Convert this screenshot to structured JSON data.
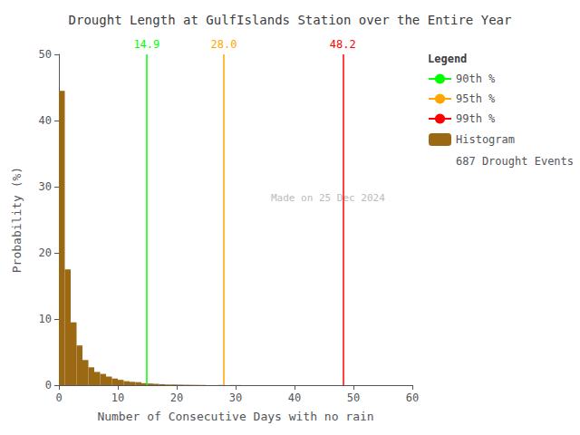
{
  "chart_data": {
    "type": "histogram",
    "title": "Drought Length at GulfIslands Station over the Entire Year",
    "x_label": "Number of Consecutive Days with no rain",
    "y_label": "Probability (%)",
    "xlim": [
      0,
      60
    ],
    "ylim": [
      0,
      50
    ],
    "xticks": [
      0,
      10,
      20,
      30,
      40,
      50,
      60
    ],
    "yticks": [
      0,
      10,
      20,
      30,
      40,
      50
    ],
    "grid": false,
    "legend": "upper right",
    "legend_title": "Legend",
    "legend_note": "687 Drought Events",
    "watermark": "Made on 25 Dec 2024",
    "bins": [
      0,
      1,
      2,
      3,
      4,
      5,
      6,
      7,
      8,
      9,
      10,
      11,
      12,
      13,
      14,
      15,
      16,
      17,
      18,
      19,
      20,
      21,
      22,
      23,
      24,
      25,
      26,
      27,
      28,
      29,
      30,
      31,
      32,
      33,
      34,
      35,
      36,
      37,
      38,
      39,
      40,
      41,
      42,
      43,
      44,
      45,
      46,
      47,
      48,
      49,
      50,
      51,
      52,
      53,
      54,
      55,
      56,
      57,
      58,
      59,
      60
    ],
    "series": [
      {
        "name": "Histogram",
        "color": "#9B6914",
        "values": [
          44.5,
          17.5,
          9.5,
          6.0,
          3.8,
          2.7,
          2.0,
          1.7,
          1.3,
          1.0,
          0.8,
          0.6,
          0.5,
          0.45,
          0.3,
          0.25,
          0.2,
          0.15,
          0.1,
          0.1,
          0.08,
          0.06,
          0.05,
          0.04,
          0.03,
          0.0,
          0.0,
          0.03,
          0.0,
          0.02,
          0.02,
          0.0,
          0.0,
          0.0,
          0.0,
          0.0,
          0.0,
          0.0,
          0.0,
          0.0,
          0.0,
          0.0,
          0.0,
          0.0,
          0.0,
          0.0,
          0.0,
          0.0,
          0.0,
          0.0,
          0.0,
          0.0,
          0.0,
          0.0,
          0.0,
          0.0,
          0.0,
          0.0,
          0.0,
          0.0
        ]
      }
    ],
    "percentiles": [
      {
        "name": "90th %",
        "x": 14.9,
        "label": "14.9",
        "color": "#00FF00"
      },
      {
        "name": "95th %",
        "x": 28.0,
        "label": "28.0",
        "color": "#FFA500"
      },
      {
        "name": "99th %",
        "x": 48.2,
        "label": "48.2",
        "color": "#FF0000"
      }
    ]
  }
}
